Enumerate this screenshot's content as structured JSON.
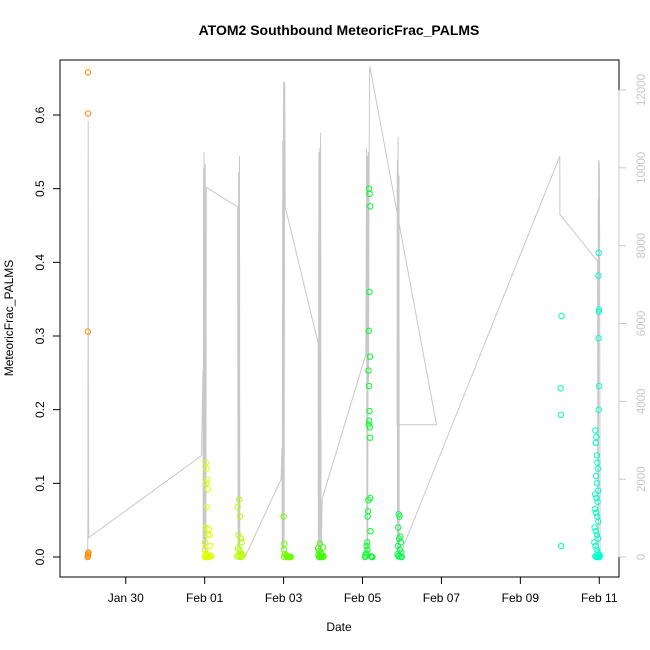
{
  "chart_data": {
    "type": "scatter",
    "title": "ATOM2 Southbound MeteoricFrac_PALMS",
    "xlabel": "Date",
    "ylabel": "MeteoricFrac_PALMS",
    "xlim": [
      "2017-01-28T08:00",
      "2017-02-11T12:00"
    ],
    "ylim": [
      0,
      0.65
    ],
    "ylim_right": [
      0,
      12500
    ],
    "x_ticks": [
      "Jan 30",
      "Feb 01",
      "Feb 03",
      "Feb 05",
      "Feb 07",
      "Feb 09",
      "Feb 11"
    ],
    "x_tick_dates": [
      "2017-01-30",
      "2017-02-01",
      "2017-02-03",
      "2017-02-05",
      "2017-02-07",
      "2017-02-09",
      "2017-02-11"
    ],
    "y_ticks": [
      0.0,
      0.1,
      0.2,
      0.3,
      0.4,
      0.5,
      0.6
    ],
    "y_tick_labels": [
      "0.0",
      "0.1",
      "0.2",
      "0.3",
      "0.4",
      "0.5",
      "0.6"
    ],
    "y_right_ticks": [
      0,
      2000,
      4000,
      6000,
      8000,
      10000,
      12000
    ],
    "grid": false,
    "legend": "none",
    "colors": {
      "altitude_line": "#c8c8c8",
      "points_jan29": "#ff8c00",
      "points_feb01": "#ddff00",
      "points_feb02": "#b4ff00",
      "points_feb03": "#6cff00",
      "points_feb04": "#3cff00",
      "points_feb05": "#00ff28",
      "points_feb06": "#00ff44",
      "points_feb10": "#00ffb0",
      "points_feb11": "#00ffc8"
    },
    "series": [
      {
        "color_key": "points_jan29",
        "points": [
          [
            "2017-01-29T01:00",
            0.658
          ],
          [
            "2017-01-29T01:05",
            0.602
          ],
          [
            "2017-01-29T00:55",
            0.306
          ],
          [
            "2017-01-29T01:10",
            0.005
          ],
          [
            "2017-01-29T01:00",
            0.003
          ],
          [
            "2017-01-29T00:50",
            0.0
          ],
          [
            "2017-01-29T01:15",
            0.006
          ],
          [
            "2017-01-29T00:58",
            0.001
          ]
        ]
      },
      {
        "color_key": "points_feb01",
        "points": [
          [
            "2017-02-01T00:40",
            0.128
          ],
          [
            "2017-02-01T01:10",
            0.12
          ],
          [
            "2017-02-01T01:40",
            0.105
          ],
          [
            "2017-02-01T00:50",
            0.1
          ],
          [
            "2017-02-01T02:00",
            0.092
          ],
          [
            "2017-02-01T01:20",
            0.068
          ],
          [
            "2017-02-01T00:30",
            0.04
          ],
          [
            "2017-02-01T02:30",
            0.038
          ],
          [
            "2017-02-01T03:00",
            0.03
          ],
          [
            "2017-02-01T01:50",
            0.03
          ],
          [
            "2017-02-01T00:20",
            0.02
          ],
          [
            "2017-02-01T03:20",
            0.015
          ],
          [
            "2017-02-01T00:10",
            0.01
          ],
          [
            "2017-02-01T00:45",
            0.005
          ],
          [
            "2017-02-01T01:15",
            0.003
          ],
          [
            "2017-02-01T01:45",
            0.002
          ],
          [
            "2017-02-01T02:15",
            0.001
          ],
          [
            "2017-02-01T02:45",
            0.0
          ],
          [
            "2017-02-01T00:05",
            0.0
          ],
          [
            "2017-02-01T03:30",
            0.002
          ],
          [
            "2017-02-01T04:00",
            0.001
          ],
          [
            "2017-02-01T00:35",
            0.0
          ],
          [
            "2017-02-01T01:30",
            0.0
          ],
          [
            "2017-02-01T02:20",
            0.0
          ]
        ]
      },
      {
        "color_key": "points_feb02",
        "points": [
          [
            "2017-02-01T20:00",
            0.068
          ],
          [
            "2017-02-01T21:00",
            0.078
          ],
          [
            "2017-02-01T21:30",
            0.055
          ],
          [
            "2017-02-01T20:30",
            0.03
          ],
          [
            "2017-02-01T22:00",
            0.025
          ],
          [
            "2017-02-01T22:30",
            0.02
          ],
          [
            "2017-02-01T20:10",
            0.012
          ],
          [
            "2017-02-01T21:10",
            0.01
          ],
          [
            "2017-02-01T21:40",
            0.006
          ],
          [
            "2017-02-01T22:10",
            0.004
          ],
          [
            "2017-02-01T20:40",
            0.002
          ],
          [
            "2017-02-01T21:20",
            0.0
          ],
          [
            "2017-02-01T22:40",
            0.0
          ],
          [
            "2017-02-01T19:50",
            0.001
          ],
          [
            "2017-02-01T23:00",
            0.003
          ]
        ]
      },
      {
        "color_key": "points_feb03",
        "points": [
          [
            "2017-02-03T00:00",
            0.055
          ],
          [
            "2017-02-03T00:30",
            0.018
          ],
          [
            "2017-02-03T00:10",
            0.01
          ],
          [
            "2017-02-03T00:50",
            0.004
          ],
          [
            "2017-02-03T01:20",
            0.002
          ],
          [
            "2017-02-03T02:00",
            0.001
          ],
          [
            "2017-02-03T02:30",
            0.0
          ],
          [
            "2017-02-03T03:00",
            0.0
          ],
          [
            "2017-02-03T03:30",
            0.001
          ],
          [
            "2017-02-03T04:00",
            0.0
          ],
          [
            "2017-02-03T04:30",
            0.0
          ],
          [
            "2017-02-03T00:20",
            0.0
          ]
        ]
      },
      {
        "color_key": "points_feb04",
        "points": [
          [
            "2017-02-03T21:00",
            0.012
          ],
          [
            "2017-02-03T21:30",
            0.008
          ],
          [
            "2017-02-03T22:00",
            0.018
          ],
          [
            "2017-02-03T22:30",
            0.006
          ],
          [
            "2017-02-04T00:00",
            0.013
          ],
          [
            "2017-02-03T23:00",
            0.004
          ],
          [
            "2017-02-03T21:10",
            0.002
          ],
          [
            "2017-02-03T21:40",
            0.0
          ],
          [
            "2017-02-03T22:10",
            0.0
          ],
          [
            "2017-02-03T22:40",
            0.001
          ],
          [
            "2017-02-03T23:20",
            0.0
          ],
          [
            "2017-02-03T23:50",
            0.0
          ],
          [
            "2017-02-04T00:20",
            0.001
          ]
        ]
      },
      {
        "color_key": "points_feb05",
        "points": [
          [
            "2017-02-05T04:00",
            0.5
          ],
          [
            "2017-02-05T04:20",
            0.493
          ],
          [
            "2017-02-05T04:40",
            0.476
          ],
          [
            "2017-02-05T04:10",
            0.36
          ],
          [
            "2017-02-05T03:50",
            0.307
          ],
          [
            "2017-02-05T04:30",
            0.272
          ],
          [
            "2017-02-05T03:40",
            0.253
          ],
          [
            "2017-02-05T03:55",
            0.232
          ],
          [
            "2017-02-05T04:15",
            0.198
          ],
          [
            "2017-02-05T04:05",
            0.185
          ],
          [
            "2017-02-05T03:45",
            0.18
          ],
          [
            "2017-02-05T04:25",
            0.176
          ],
          [
            "2017-02-05T04:35",
            0.162
          ],
          [
            "2017-02-05T04:45",
            0.08
          ],
          [
            "2017-02-05T03:30",
            0.077
          ],
          [
            "2017-02-05T03:20",
            0.062
          ],
          [
            "2017-02-05T03:10",
            0.055
          ],
          [
            "2017-02-05T04:50",
            0.035
          ],
          [
            "2017-02-05T02:50",
            0.02
          ],
          [
            "2017-02-05T02:30",
            0.015
          ],
          [
            "2017-02-05T03:00",
            0.01
          ],
          [
            "2017-02-05T02:10",
            0.005
          ],
          [
            "2017-02-05T01:50",
            0.002
          ],
          [
            "2017-02-05T05:10",
            0.001
          ],
          [
            "2017-02-05T05:30",
            0.0
          ],
          [
            "2017-02-05T06:00",
            0.0
          ],
          [
            "2017-02-05T01:30",
            0.0
          ]
        ]
      },
      {
        "color_key": "points_feb06",
        "points": [
          [
            "2017-02-05T22:00",
            0.058
          ],
          [
            "2017-02-05T22:30",
            0.055
          ],
          [
            "2017-02-05T21:40",
            0.04
          ],
          [
            "2017-02-05T23:00",
            0.028
          ],
          [
            "2017-02-05T22:20",
            0.025
          ],
          [
            "2017-02-05T23:20",
            0.02
          ],
          [
            "2017-02-05T21:30",
            0.015
          ],
          [
            "2017-02-05T22:40",
            0.01
          ],
          [
            "2017-02-05T23:40",
            0.006
          ],
          [
            "2017-02-05T21:20",
            0.004
          ],
          [
            "2017-02-05T22:10",
            0.002
          ],
          [
            "2017-02-05T23:10",
            0.0
          ],
          [
            "2017-02-05T23:50",
            0.0
          ],
          [
            "2017-02-05T21:50",
            0.001
          ]
        ]
      },
      {
        "color_key": "points_feb10",
        "points": [
          [
            "2017-02-10T01:00",
            0.327
          ],
          [
            "2017-02-10T00:30",
            0.229
          ],
          [
            "2017-02-10T00:40",
            0.193
          ],
          [
            "2017-02-10T00:50",
            0.015
          ]
        ]
      },
      {
        "color_key": "points_feb11",
        "points": [
          [
            "2017-02-10T23:40",
            0.413
          ],
          [
            "2017-02-10T23:30",
            0.382
          ],
          [
            "2017-02-10T23:50",
            0.336
          ],
          [
            "2017-02-10T23:45",
            0.333
          ],
          [
            "2017-02-10T23:35",
            0.297
          ],
          [
            "2017-02-10T23:55",
            0.232
          ],
          [
            "2017-02-10T23:40",
            0.2
          ],
          [
            "2017-02-10T21:40",
            0.172
          ],
          [
            "2017-02-10T22:10",
            0.163
          ],
          [
            "2017-02-10T21:50",
            0.155
          ],
          [
            "2017-02-10T22:30",
            0.138
          ],
          [
            "2017-02-10T22:50",
            0.128
          ],
          [
            "2017-02-10T23:10",
            0.12
          ],
          [
            "2017-02-10T22:00",
            0.11
          ],
          [
            "2017-02-10T22:40",
            0.1
          ],
          [
            "2017-02-10T23:20",
            0.09
          ],
          [
            "2017-02-10T21:30",
            0.085
          ],
          [
            "2017-02-10T22:20",
            0.08
          ],
          [
            "2017-02-10T23:00",
            0.075
          ],
          [
            "2017-02-10T21:20",
            0.065
          ],
          [
            "2017-02-10T22:05",
            0.06
          ],
          [
            "2017-02-10T22:45",
            0.055
          ],
          [
            "2017-02-10T23:25",
            0.048
          ],
          [
            "2017-02-10T21:10",
            0.04
          ],
          [
            "2017-02-10T21:55",
            0.035
          ],
          [
            "2017-02-10T22:35",
            0.03
          ],
          [
            "2017-02-10T23:15",
            0.025
          ],
          [
            "2017-02-10T21:00",
            0.02
          ],
          [
            "2017-02-10T21:45",
            0.015
          ],
          [
            "2017-02-10T22:25",
            0.01
          ],
          [
            "2017-02-10T23:05",
            0.006
          ],
          [
            "2017-02-10T23:45",
            0.003
          ],
          [
            "2017-02-10T21:35",
            0.001
          ],
          [
            "2017-02-10T22:15",
            0.0
          ],
          [
            "2017-02-10T22:55",
            0.0
          ],
          [
            "2017-02-10T23:35",
            0.0
          ],
          [
            "2017-02-11T00:10",
            0.0
          ],
          [
            "2017-02-11T00:20",
            0.002
          ]
        ]
      }
    ],
    "altitude_line": [
      [
        "2017-01-29T00:50",
        0
      ],
      [
        "2017-01-29T01:00",
        1300
      ],
      [
        "2017-01-29T01:10",
        11200
      ],
      [
        "2017-01-29T01:20",
        1200
      ],
      [
        "2017-01-29T01:30",
        500
      ],
      [
        "2017-01-31T22:00",
        2600
      ],
      [
        "2017-01-31T23:00",
        4800
      ],
      [
        "2017-01-31T23:05",
        200
      ],
      [
        "2017-01-31T23:20",
        10000
      ],
      [
        "2017-01-31T23:25",
        200
      ],
      [
        "2017-01-31T23:40",
        10400
      ],
      [
        "2017-01-31T23:45",
        300
      ],
      [
        "2017-02-01T00:00",
        9800
      ],
      [
        "2017-02-01T00:05",
        200
      ],
      [
        "2017-02-01T00:20",
        10100
      ],
      [
        "2017-02-01T00:25",
        100
      ],
      [
        "2017-02-01T00:40",
        5300
      ],
      [
        "2017-02-01T00:45",
        0
      ],
      [
        "2017-02-01T01:00",
        9500
      ],
      [
        "2017-02-01T20:00",
        9000
      ],
      [
        "2017-02-01T20:20",
        200
      ],
      [
        "2017-02-01T20:40",
        9900
      ],
      [
        "2017-02-01T20:50",
        300
      ],
      [
        "2017-02-01T21:10",
        10300
      ],
      [
        "2017-02-01T21:20",
        0
      ],
      [
        "2017-02-01T21:30",
        0
      ],
      [
        "2017-02-02T00:30",
        0
      ],
      [
        "2017-02-02T22:30",
        2000
      ],
      [
        "2017-02-02T23:00",
        2800
      ],
      [
        "2017-02-02T23:10",
        200
      ],
      [
        "2017-02-02T23:30",
        10700
      ],
      [
        "2017-02-02T23:40",
        100
      ],
      [
        "2017-02-03T00:00",
        12200
      ],
      [
        "2017-02-03T00:10",
        12200
      ],
      [
        "2017-02-03T00:20",
        200
      ],
      [
        "2017-02-03T00:40",
        12200
      ],
      [
        "2017-02-03T01:00",
        9000
      ],
      [
        "2017-02-03T21:00",
        5500
      ],
      [
        "2017-02-03T21:10",
        0
      ],
      [
        "2017-02-03T21:30",
        10400
      ],
      [
        "2017-02-03T21:40",
        0
      ],
      [
        "2017-02-03T22:00",
        10500
      ],
      [
        "2017-02-03T22:10",
        200
      ],
      [
        "2017-02-03T22:30",
        10900
      ],
      [
        "2017-02-03T22:50",
        0
      ],
      [
        "2017-02-03T23:30",
        1500
      ],
      [
        "2017-02-05T02:00",
        5200
      ],
      [
        "2017-02-05T02:30",
        10500
      ],
      [
        "2017-02-05T02:40",
        200
      ],
      [
        "2017-02-05T03:00",
        10300
      ],
      [
        "2017-02-05T03:10",
        100
      ],
      [
        "2017-02-05T03:30",
        10400
      ],
      [
        "2017-02-05T03:40",
        4500
      ],
      [
        "2017-02-05T04:00",
        10000
      ],
      [
        "2017-02-05T04:20",
        12500
      ],
      [
        "2017-02-05T04:30",
        12600
      ],
      [
        "2017-02-06T21:00",
        3400
      ],
      [
        "2017-02-05T21:00",
        3400
      ],
      [
        "2017-02-05T21:10",
        10200
      ],
      [
        "2017-02-05T21:20",
        100
      ],
      [
        "2017-02-05T21:40",
        10800
      ],
      [
        "2017-02-05T21:50",
        100
      ],
      [
        "2017-02-05T22:10",
        9800
      ],
      [
        "2017-02-05T22:20",
        0
      ],
      [
        "2017-02-10T00:00",
        10300
      ],
      [
        "2017-02-10T00:05",
        8800
      ],
      [
        "2017-02-10T23:00",
        7600
      ],
      [
        "2017-02-10T23:10",
        200
      ],
      [
        "2017-02-10T23:20",
        9200
      ],
      [
        "2017-02-10T23:30",
        100
      ],
      [
        "2017-02-10T23:40",
        10200
      ],
      [
        "2017-02-11T00:00",
        10100
      ],
      [
        "2017-02-11T00:10",
        9600
      ],
      [
        "2017-02-11T00:30",
        0
      ]
    ]
  }
}
